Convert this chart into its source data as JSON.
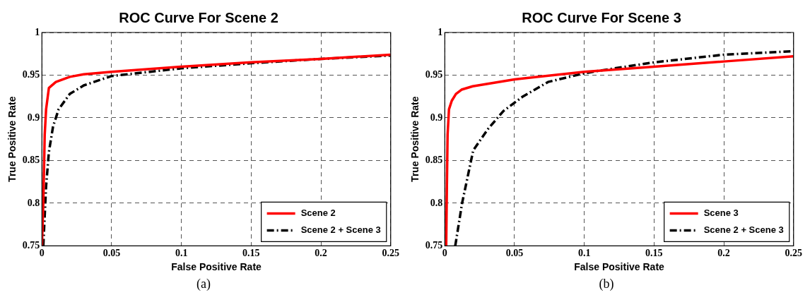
{
  "chart_data": [
    {
      "type": "line",
      "title": "ROC Curve For Scene 2",
      "xlabel": "False Positive Rate",
      "ylabel": "True Positive Rate",
      "xlim": [
        0,
        0.25
      ],
      "ylim": [
        0.75,
        1
      ],
      "xticks": [
        0,
        0.05,
        0.1,
        0.15,
        0.2,
        0.25
      ],
      "yticks": [
        0.75,
        0.8,
        0.85,
        0.9,
        0.95,
        1
      ],
      "grid": true,
      "legend": "bottom right",
      "marker": "none",
      "annotations": [
        "(a)"
      ],
      "series": [
        {
          "name": "Scene 2",
          "color": "#ff0000",
          "line_style": "solid",
          "x": [
            0,
            0.001,
            0.002,
            0.003,
            0.005,
            0.01,
            0.02,
            0.03,
            0.05,
            0.1,
            0.15,
            0.2,
            0.25
          ],
          "values": [
            0.75,
            0.8,
            0.88,
            0.91,
            0.935,
            0.942,
            0.948,
            0.951,
            0.954,
            0.96,
            0.965,
            0.969,
            0.974
          ]
        },
        {
          "name": "Scene 2 + Scene 3",
          "color": "#000000",
          "line_style": "dashed",
          "x": [
            0.001,
            0.003,
            0.005,
            0.008,
            0.012,
            0.02,
            0.03,
            0.05,
            0.1,
            0.15,
            0.2,
            0.25
          ],
          "values": [
            0.75,
            0.82,
            0.86,
            0.89,
            0.91,
            0.928,
            0.938,
            0.949,
            0.958,
            0.964,
            0.969,
            0.973
          ]
        }
      ]
    },
    {
      "type": "line",
      "title": "ROC Curve For Scene 3",
      "xlabel": "False Positive Rate",
      "ylabel": "True Positive Rate",
      "xlim": [
        0,
        0.25
      ],
      "ylim": [
        0.75,
        1
      ],
      "xticks": [
        0,
        0.05,
        0.1,
        0.15,
        0.2,
        0.25
      ],
      "yticks": [
        0.75,
        0.8,
        0.85,
        0.9,
        0.95,
        1
      ],
      "grid": true,
      "legend": "bottom right",
      "marker": "none",
      "annotations": [
        "(b)"
      ],
      "series": [
        {
          "name": "Scene 3",
          "color": "#ff0000",
          "line_style": "solid",
          "x": [
            0.001,
            0.0015,
            0.002,
            0.003,
            0.005,
            0.008,
            0.012,
            0.02,
            0.05,
            0.1,
            0.15,
            0.2,
            0.25
          ],
          "values": [
            0.75,
            0.82,
            0.88,
            0.91,
            0.92,
            0.928,
            0.933,
            0.937,
            0.945,
            0.954,
            0.96,
            0.966,
            0.972
          ]
        },
        {
          "name": "Scene 2 + Scene 3",
          "color": "#000000",
          "line_style": "dashed",
          "x": [
            0.0075,
            0.0124,
            0.0204,
            0.031,
            0.042,
            0.056,
            0.074,
            0.0995,
            0.11,
            0.15,
            0.2,
            0.25
          ],
          "values": [
            0.75,
            0.8,
            0.862,
            0.887,
            0.908,
            0.925,
            0.942,
            0.952,
            0.955,
            0.965,
            0.974,
            0.978
          ]
        }
      ]
    }
  ]
}
